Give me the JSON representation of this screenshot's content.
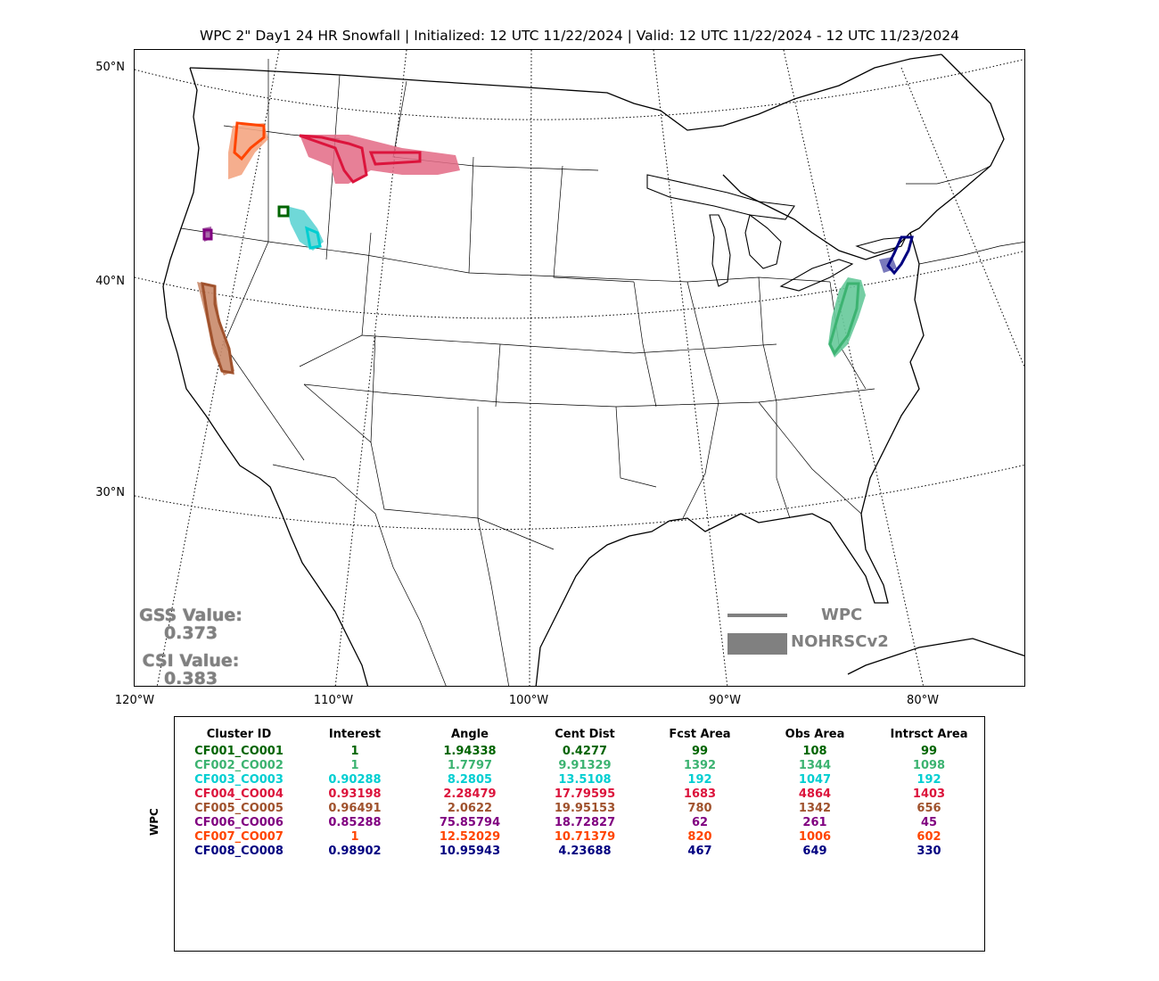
{
  "title": "WPC 2\" Day1 24 HR Snowfall | Initialized: 12 UTC 11/22/2024 | Valid: 12 UTC 11/22/2024 - 12 UTC 11/23/2024",
  "lat_labels": [
    "50°N",
    "40°N",
    "30°N"
  ],
  "lon_labels": [
    "120°W",
    "110°W",
    "100°W",
    "90°W",
    "80°W"
  ],
  "scores": {
    "gss_label": "GSS Value:",
    "gss_value": "0.373",
    "csi_label": "CSI Value:",
    "csi_value": "0.383"
  },
  "legend": {
    "line_label": "WPC",
    "fill_label": "NOHRSCv2",
    "color": "#808080"
  },
  "table": {
    "side_label": "WPC",
    "headers": [
      "Cluster ID",
      "Interest",
      "Angle",
      "Cent Dist",
      "Fcst Area",
      "Obs Area",
      "Intrsct Area"
    ],
    "rows": [
      {
        "color": "#006400",
        "cells": [
          "CF001_CO001",
          "1",
          "1.94338",
          "0.4277",
          "99",
          "108",
          "99"
        ]
      },
      {
        "color": "#3cb371",
        "cells": [
          "CF002_CO002",
          "1",
          "1.7797",
          "9.91329",
          "1392",
          "1344",
          "1098"
        ]
      },
      {
        "color": "#00ced1",
        "cells": [
          "CF003_CO003",
          "0.90288",
          "8.2805",
          "13.5108",
          "192",
          "1047",
          "192"
        ]
      },
      {
        "color": "#dc143c",
        "cells": [
          "CF004_CO004",
          "0.93198",
          "2.28479",
          "17.79595",
          "1683",
          "4864",
          "1403"
        ]
      },
      {
        "color": "#a0522d",
        "cells": [
          "CF005_CO005",
          "0.96491",
          "2.0622",
          "19.95153",
          "780",
          "1342",
          "656"
        ]
      },
      {
        "color": "#800080",
        "cells": [
          "CF006_CO006",
          "0.85288",
          "75.85794",
          "18.72827",
          "62",
          "261",
          "45"
        ]
      },
      {
        "color": "#ff4500",
        "cells": [
          "CF007_CO007",
          "1",
          "12.52029",
          "10.71379",
          "820",
          "1006",
          "602"
        ]
      },
      {
        "color": "#000080",
        "cells": [
          "CF008_CO008",
          "0.98902",
          "10.95943",
          "4.23688",
          "467",
          "649",
          "330"
        ]
      }
    ]
  }
}
